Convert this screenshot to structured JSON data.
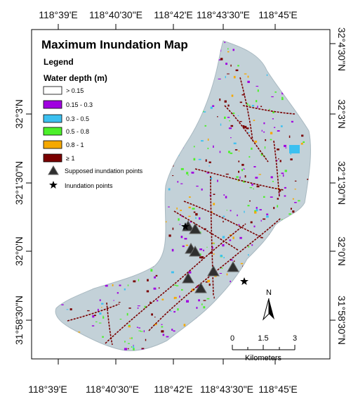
{
  "map": {
    "title": "Maximum Inundation Map",
    "legend_title": "Legend",
    "water_depth_title": "Water depth (m)",
    "depth_classes": [
      {
        "label": "> 0.15",
        "color": "#ffffff"
      },
      {
        "label": "0.15 - 0.3",
        "color": "#a000e0"
      },
      {
        "label": "0.3 - 0.5",
        "color": "#3cc0f0"
      },
      {
        "label": "0.5 - 0.8",
        "color": "#4cf02a"
      },
      {
        "label": "0.8 - 1",
        "color": "#f5a800"
      },
      {
        "label": "≥ 1",
        "color": "#7a0000"
      }
    ],
    "supposed_points_label": "Supposed inundation points",
    "inundation_points_label": "Inundation points",
    "basin_color": "#c3d1d8",
    "top_ticks": [
      "118°39'E",
      "118°40'30\"E",
      "118°42'E",
      "118°43'30\"E",
      "118°45'E"
    ],
    "bottom_ticks": [
      "118°39'E",
      "118°40'30\"E",
      "118°42'E",
      "118°43'30\"E",
      "118°45'E"
    ],
    "left_ticks": [
      "32°3'N",
      "32°1'30\"N",
      "32°0'N",
      "31°58'30\"N"
    ],
    "right_ticks": [
      "32°4'30\"N",
      "32°3'N",
      "32°1'30\"N",
      "32°0'N",
      "31°58'30\"N"
    ],
    "north_label": "N",
    "scale_ticks": [
      "0",
      "1.5",
      "3"
    ],
    "scale_unit": "Kilometers"
  }
}
